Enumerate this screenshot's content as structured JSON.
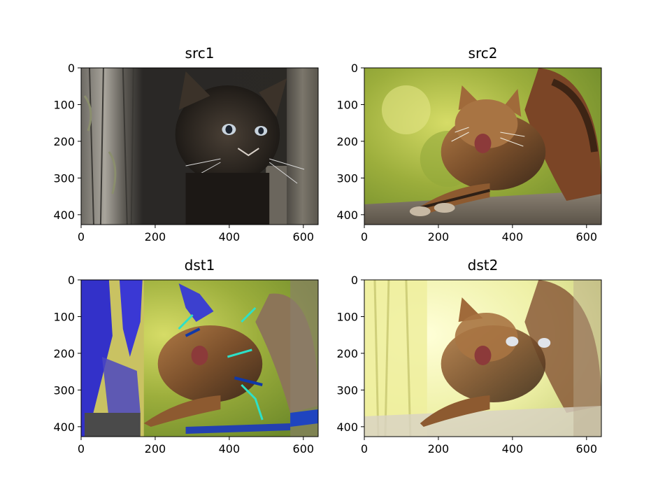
{
  "chart_data": [
    {
      "type": "image",
      "title": "src1",
      "x_ticks": [
        0,
        200,
        400,
        600
      ],
      "y_ticks": [
        0,
        100,
        200,
        300,
        400
      ],
      "xlim": [
        0,
        640
      ],
      "ylim": [
        427,
        0
      ],
      "content": "kitten"
    },
    {
      "type": "image",
      "title": "src2",
      "x_ticks": [
        0,
        200,
        400,
        600
      ],
      "y_ticks": [
        0,
        100,
        200,
        300,
        400
      ],
      "xlim": [
        0,
        640
      ],
      "ylim": [
        427,
        0
      ],
      "content": "stretching-cat"
    },
    {
      "type": "image",
      "title": "dst1",
      "x_ticks": [
        0,
        200,
        400,
        600
      ],
      "y_ticks": [
        0,
        100,
        200,
        300,
        400
      ],
      "xlim": [
        0,
        640
      ],
      "ylim": [
        427,
        0
      ],
      "content": "additive-blend"
    },
    {
      "type": "image",
      "title": "dst2",
      "x_ticks": [
        0,
        200,
        400,
        600
      ],
      "y_ticks": [
        0,
        100,
        200,
        300,
        400
      ],
      "xlim": [
        0,
        640
      ],
      "ylim": [
        427,
        0
      ],
      "content": "weighted-blend"
    }
  ]
}
